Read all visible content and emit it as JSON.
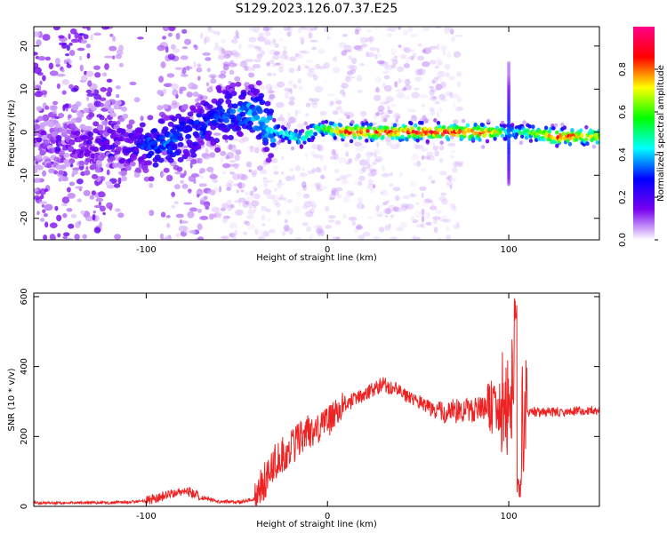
{
  "title": "S129.2023.126.07.37.E25",
  "colors": {
    "snr_line": "#ee2222",
    "axes": "#000000"
  },
  "chart_data": [
    {
      "type": "heatmap",
      "xlabel": "Height of straight line (km)",
      "ylabel": "Frequency (Hz)",
      "xlim": [
        -162,
        150
      ],
      "ylim": [
        -25,
        24.5
      ],
      "x_ticks": [
        -100,
        0,
        100
      ],
      "y_ticks": [
        -20,
        -10,
        0,
        10,
        20
      ],
      "colorbar": {
        "label": "Normalized spectral amplitude",
        "range": [
          0,
          1
        ],
        "ticks": [
          0.0,
          0.2,
          0.4,
          0.6,
          0.8
        ],
        "colormap": [
          "#ffffff",
          "#7700ee",
          "#0000ff",
          "#00ffff",
          "#00ff00",
          "#ffff00",
          "#ff0000",
          "#ff0088"
        ]
      },
      "ridge": [
        {
          "x": -160,
          "f": -2.0,
          "a": 0.1
        },
        {
          "x": -110,
          "f": -3.0,
          "a": 0.2
        },
        {
          "x": -90,
          "f": -3.0,
          "a": 0.35
        },
        {
          "x": -70,
          "f": 1.0,
          "a": 0.3
        },
        {
          "x": -50,
          "f": 5.0,
          "a": 0.35
        },
        {
          "x": -40,
          "f": 4.0,
          "a": 0.4
        },
        {
          "x": -30,
          "f": 0.5,
          "a": 0.45
        },
        {
          "x": -15,
          "f": -1.5,
          "a": 0.5
        },
        {
          "x": -5,
          "f": 1.0,
          "a": 0.55
        },
        {
          "x": 10,
          "f": 0.0,
          "a": 0.85
        },
        {
          "x": 50,
          "f": 0.0,
          "a": 0.9
        },
        {
          "x": 90,
          "f": 0.0,
          "a": 0.85
        },
        {
          "x": 100,
          "f": 0.0,
          "a": 0.45
        },
        {
          "x": 110,
          "f": 0.0,
          "a": 0.55
        },
        {
          "x": 125,
          "f": -1.0,
          "a": 0.9
        },
        {
          "x": 150,
          "f": -1.0,
          "a": 0.7
        }
      ]
    },
    {
      "type": "line",
      "xlabel": "Height of straight line (km)",
      "ylabel": "SNR (10 * v/v)",
      "xlim": [
        -162,
        150
      ],
      "ylim": [
        0,
        610
      ],
      "x_ticks": [
        -100,
        0,
        100
      ],
      "y_ticks": [
        0,
        200,
        400,
        600
      ],
      "series": [
        {
          "points": [
            [
              -162,
              10
            ],
            [
              -120,
              10
            ],
            [
              -100,
              15
            ],
            [
              -90,
              30
            ],
            [
              -80,
              45
            ],
            [
              -75,
              40
            ],
            [
              -70,
              25
            ],
            [
              -60,
              15
            ],
            [
              -50,
              12
            ],
            [
              -40,
              20
            ],
            [
              -35,
              70
            ],
            [
              -30,
              120
            ],
            [
              -20,
              170
            ],
            [
              -10,
              210
            ],
            [
              0,
              240
            ],
            [
              10,
              290
            ],
            [
              20,
              320
            ],
            [
              30,
              350
            ],
            [
              40,
              330
            ],
            [
              60,
              270
            ],
            [
              80,
              275
            ],
            [
              90,
              285
            ],
            [
              100,
              300
            ],
            [
              102,
              320
            ],
            [
              104,
              280
            ],
            [
              106,
              250
            ],
            [
              108,
              240
            ],
            [
              110,
              270
            ],
            [
              130,
              270
            ],
            [
              150,
              275
            ]
          ]
        }
      ]
    }
  ]
}
